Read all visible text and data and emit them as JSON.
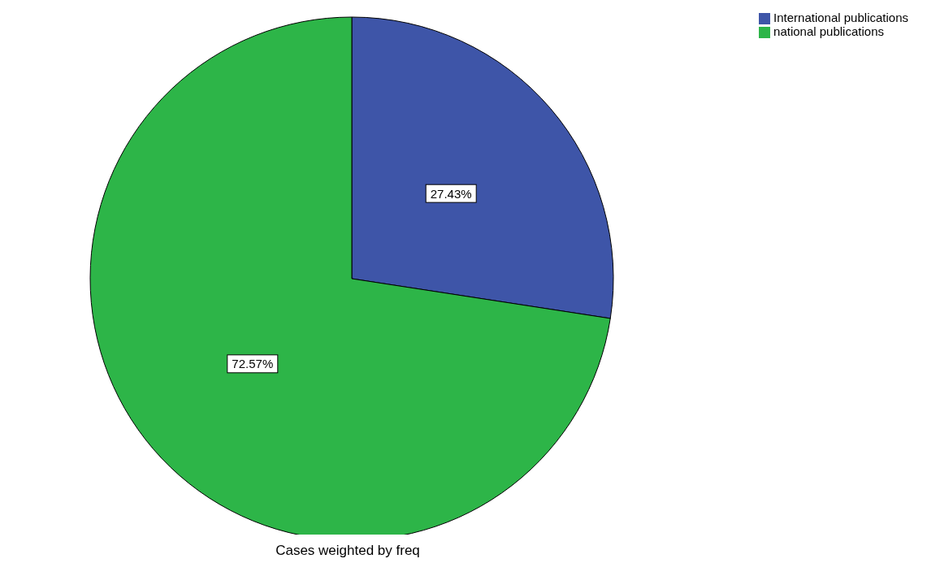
{
  "chart_data": {
    "type": "pie",
    "categories": [
      "International publications",
      "national publications"
    ],
    "values": [
      27.43,
      72.57
    ],
    "colors": [
      "#3e55a8",
      "#2db548"
    ],
    "data_labels": true,
    "value_labels": [
      "27.43%",
      "72.57%"
    ],
    "legend": "top right",
    "annotations": [
      "Cases weighted by freq"
    ]
  }
}
